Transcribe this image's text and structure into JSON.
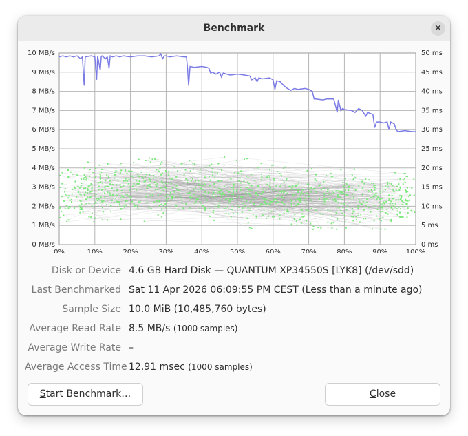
{
  "window": {
    "title": "Benchmark",
    "close_icon": "close-icon"
  },
  "chart_data": {
    "type": "line",
    "title": "",
    "xlabel": "",
    "ylabel": "",
    "x_ticks": [
      "0%",
      "10%",
      "20%",
      "30%",
      "40%",
      "50%",
      "60%",
      "70%",
      "80%",
      "90%",
      "100%"
    ],
    "y_left_ticks": [
      "0 MB/s",
      "1 MB/s",
      "2 MB/s",
      "3 MB/s",
      "4 MB/s",
      "5 MB/s",
      "6 MB/s",
      "7 MB/s",
      "8 MB/s",
      "9 MB/s",
      "10 MB/s"
    ],
    "y_right_ticks": [
      "0 ms",
      "5 ms",
      "10 ms",
      "15 ms",
      "20 ms",
      "25 ms",
      "30 ms",
      "35 ms",
      "40 ms",
      "45 ms",
      "50 ms"
    ],
    "xlim": [
      0,
      100
    ],
    "ylim_left": [
      0,
      10
    ],
    "ylim_right": [
      0,
      50
    ],
    "grid": true,
    "series": [
      {
        "kind": "read-rate-line",
        "color": "#7b7be6",
        "axis": "left",
        "points": [
          [
            0,
            9.8
          ],
          [
            1,
            9.85
          ],
          [
            2,
            9.8
          ],
          [
            3,
            9.85
          ],
          [
            4,
            9.8
          ],
          [
            5,
            9.85
          ],
          [
            6,
            9.7
          ],
          [
            6.5,
            9.8
          ],
          [
            7,
            8.3
          ],
          [
            7.3,
            9.8
          ],
          [
            9,
            9.85
          ],
          [
            10,
            9.8
          ],
          [
            10.5,
            8.6
          ],
          [
            10.8,
            9.85
          ],
          [
            11.5,
            9.1
          ],
          [
            11.8,
            9.8
          ],
          [
            12,
            9.85
          ],
          [
            13,
            9.7
          ],
          [
            13.5,
            9.8
          ],
          [
            14,
            9.2
          ],
          [
            14.3,
            9.85
          ],
          [
            15,
            9.8
          ],
          [
            16,
            9.85
          ],
          [
            17,
            9.8
          ],
          [
            18,
            9.85
          ],
          [
            20,
            9.8
          ],
          [
            22,
            9.85
          ],
          [
            24,
            9.85
          ],
          [
            26,
            9.8
          ],
          [
            28,
            9.85
          ],
          [
            28.5,
            9.95
          ],
          [
            29,
            9.7
          ],
          [
            29.5,
            9.85
          ],
          [
            30,
            9.85
          ],
          [
            31,
            9.8
          ],
          [
            33,
            9.85
          ],
          [
            35,
            9.8
          ],
          [
            35.7,
            9.8
          ],
          [
            36,
            9.2
          ],
          [
            36.3,
            8.3
          ],
          [
            36.7,
            9.3
          ],
          [
            38,
            9.25
          ],
          [
            40,
            9.3
          ],
          [
            41.5,
            9.25
          ],
          [
            42,
            9.2
          ],
          [
            42.5,
            8.95
          ],
          [
            43,
            9.0
          ],
          [
            44,
            8.9
          ],
          [
            45,
            9.0
          ],
          [
            45.5,
            8.75
          ],
          [
            46,
            8.95
          ],
          [
            47,
            8.9
          ],
          [
            48,
            8.85
          ],
          [
            50,
            8.9
          ],
          [
            52,
            8.85
          ],
          [
            53.5,
            8.8
          ],
          [
            54,
            8.6
          ],
          [
            55,
            8.7
          ],
          [
            55.5,
            8.5
          ],
          [
            56,
            8.7
          ],
          [
            57,
            8.65
          ],
          [
            59,
            8.7
          ],
          [
            60,
            8.6
          ],
          [
            60.5,
            8.1
          ],
          [
            61,
            8.55
          ],
          [
            62,
            8.5
          ],
          [
            63,
            8.3
          ],
          [
            64,
            8.15
          ],
          [
            65,
            8.05
          ],
          [
            66,
            8.15
          ],
          [
            67,
            8.1
          ],
          [
            69,
            8.15
          ],
          [
            70,
            8.1
          ],
          [
            71,
            8.0
          ],
          [
            71.5,
            7.6
          ],
          [
            72,
            7.6
          ],
          [
            74,
            7.55
          ],
          [
            75,
            7.6
          ],
          [
            77,
            7.6
          ],
          [
            78,
            6.9
          ],
          [
            78.3,
            7.55
          ],
          [
            79,
            7.0
          ],
          [
            79.5,
            7.1
          ],
          [
            80,
            7.05
          ],
          [
            82,
            7.0
          ],
          [
            83,
            6.9
          ],
          [
            84,
            7.1
          ],
          [
            85,
            7.0
          ],
          [
            86,
            6.7
          ],
          [
            86.5,
            6.9
          ],
          [
            88,
            6.8
          ],
          [
            88.5,
            6.1
          ],
          [
            89,
            6.4
          ],
          [
            90,
            6.4
          ],
          [
            91,
            6.35
          ],
          [
            92,
            6.4
          ],
          [
            92.5,
            6.0
          ],
          [
            93,
            6.4
          ],
          [
            94,
            6.3
          ],
          [
            94.5,
            6.0
          ],
          [
            95,
            5.9
          ],
          [
            97,
            5.95
          ],
          [
            99,
            5.9
          ],
          [
            100,
            5.9
          ]
        ]
      },
      {
        "kind": "access-time-scatter",
        "color": "#7be87b",
        "axis": "right",
        "samples": 1000,
        "mean_ms": 12.91,
        "range_ms": [
          4,
          24
        ]
      }
    ]
  },
  "info": {
    "device_label": "Disk or Device",
    "device_value": "4.6 GB Hard Disk — QUANTUM XP34550S [LYK8] (/dev/sdd)",
    "last_label": "Last Benchmarked",
    "last_value": "Sat 11 Apr 2026 06:09:55 PM CEST (Less than a minute ago)",
    "sample_label": "Sample Size",
    "sample_value": "10.0 MiB (10,485,760 bytes)",
    "read_label": "Average Read Rate",
    "read_value": "8.5 MB/s",
    "read_samples": "(1000 samples)",
    "write_label": "Average Write Rate",
    "write_value": "–",
    "access_label": "Average Access Time",
    "access_value": "12.91 msec",
    "access_samples": "(1000 samples)"
  },
  "buttons": {
    "start_mnemonic": "S",
    "start_rest": "tart Benchmark…",
    "close_mnemonic": "C",
    "close_rest": "lose"
  }
}
